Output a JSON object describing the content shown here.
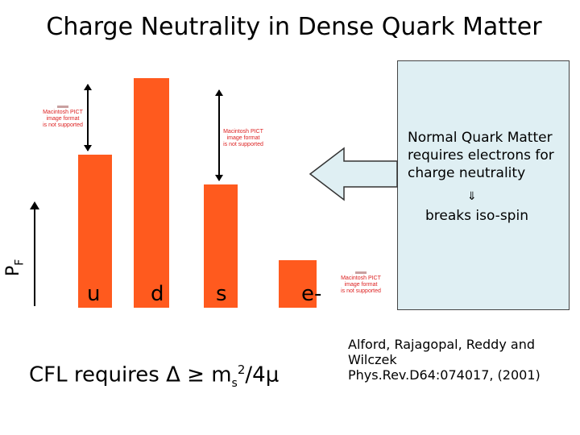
{
  "slide": {
    "title": "Charge Neutrality in Dense Quark Matter",
    "axis_label": "P",
    "axis_label_sub": "F",
    "quarks": [
      {
        "label": "u"
      },
      {
        "label": "d"
      },
      {
        "label": "s"
      },
      {
        "label": "e-"
      }
    ],
    "pict_placeholder": [
      "Macintosh PICT",
      "image format",
      "is not supported"
    ],
    "note_box": {
      "line1": "Normal Quark Matter",
      "line2": "requires electrons for",
      "line3": "charge neutrality",
      "symbol": "⇓",
      "line4": "breaks iso-spin"
    },
    "cfl": {
      "prefix": "CFL requires Δ ≥ m",
      "sub": "s",
      "sup": "2",
      "suffix": "/4μ"
    },
    "reference": {
      "line1": "Alford, Rajagopal, Reddy and",
      "line2": "Wilczek",
      "line3": "Phys.Rev.D64:074017, (2001)"
    },
    "colors": {
      "bar": "#ff5a1e",
      "box": "#dfeff3"
    }
  }
}
